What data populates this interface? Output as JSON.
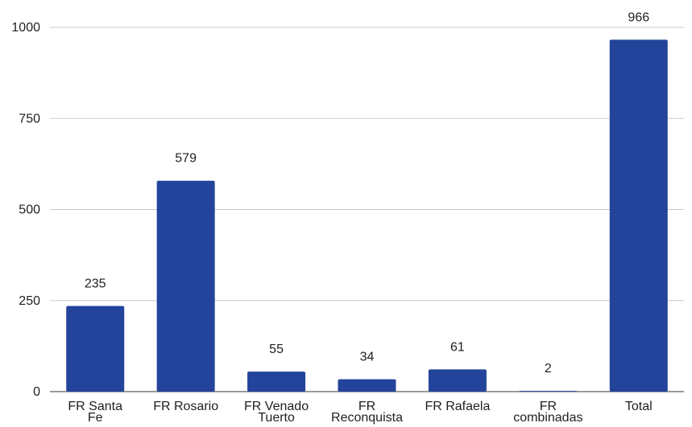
{
  "chart_data": {
    "type": "bar",
    "title": "",
    "xlabel": "",
    "ylabel": "",
    "ylim": [
      0,
      1000
    ],
    "yticks": [
      0,
      250,
      500,
      750,
      1000
    ],
    "grid": true,
    "legend": "none",
    "bar_color": "#23449a",
    "categories": [
      [
        "FR Santa",
        "Fe"
      ],
      [
        "FR Rosario"
      ],
      [
        "FR Venado",
        "Tuerto"
      ],
      [
        "FR",
        "Reconquista"
      ],
      [
        "FR Rafaela"
      ],
      [
        "FR",
        "combinadas"
      ],
      [
        "Total"
      ]
    ],
    "values": [
      235,
      579,
      55,
      34,
      61,
      2,
      966
    ]
  }
}
